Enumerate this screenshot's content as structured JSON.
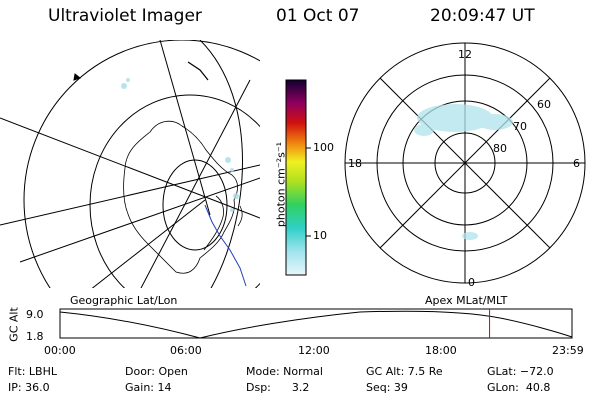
{
  "header": {
    "instrument": "Ultraviolet Imager",
    "date": "01 Oct 07",
    "time": "20:09:47 UT"
  },
  "colorbar": {
    "unit_label": "photon cm⁻²s⁻¹",
    "ticks": [
      "100",
      "10"
    ],
    "scale": "log"
  },
  "polar_plot": {
    "mlt_labels": {
      "top": "12",
      "left": "18",
      "right": "6",
      "bottom": "0"
    },
    "lat_labels": [
      "60",
      "70",
      "80"
    ]
  },
  "orbit_plot": {
    "left_title": "Geographic Lat/Lon",
    "right_title": "Apex MLat/MLT",
    "y_axis_label": "GC Alt",
    "y_ticks": [
      "9.0",
      "1.8"
    ],
    "x_ticks": [
      "00:00",
      "06:00",
      "12:00",
      "18:00",
      "23:59"
    ],
    "current_marker_color": "#e00000",
    "current_time_fraction": 0.839
  },
  "status": {
    "flt": "Flt: LBHL",
    "ip": "IP: 36.0",
    "door": "Door: Open",
    "gain": "Gain: 14",
    "mode": "Mode: Normal",
    "dsp": "Dsp:      3.2",
    "gc_alt": "GC Alt: 7.5 Re",
    "seq": "Seq: 39",
    "glat": "GLat: −72.0",
    "glon": "GLon:  40.8"
  }
}
